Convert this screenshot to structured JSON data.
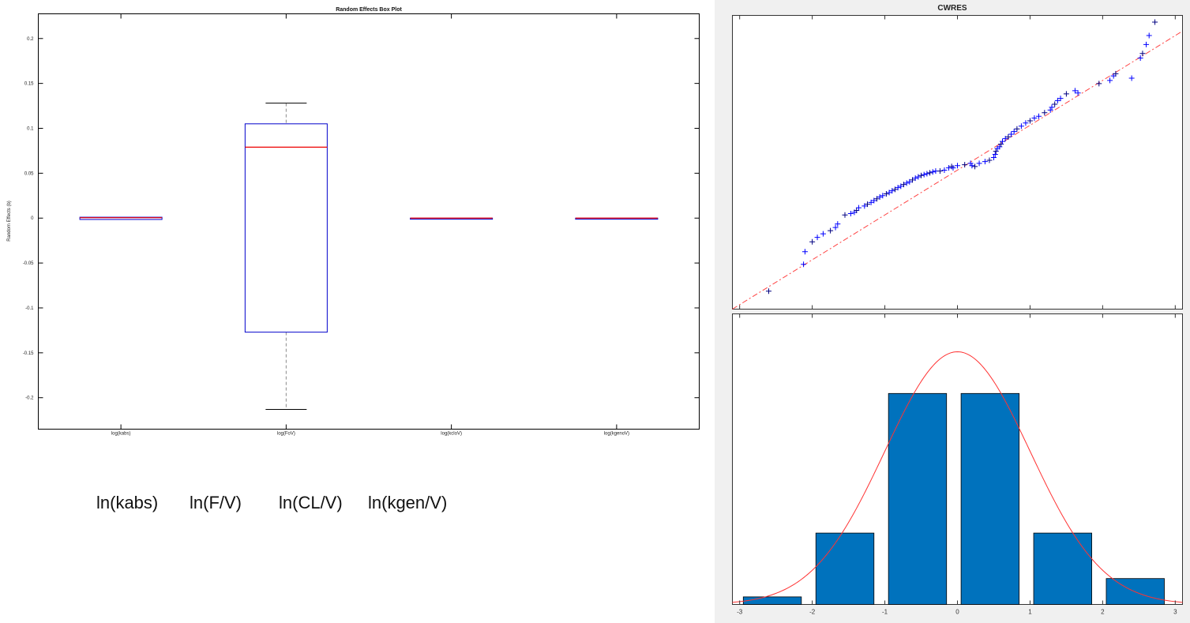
{
  "chart_data": [
    {
      "type": "box",
      "title": "Random Effects Box Plot",
      "xlabel": "",
      "ylabel": "Random Effects (b)",
      "ylim": [
        -0.235,
        0.2275
      ],
      "yticks": [
        0.2,
        0.15,
        0.1,
        0.05,
        0,
        -0.05,
        -0.1,
        -0.15,
        -0.2
      ],
      "categories": [
        "log(kabs)",
        "log(FoV)",
        "log(kcloV)",
        "log(kgenoV)"
      ],
      "boxes": [
        {
          "q1": -0.0015,
          "median": 0.0005,
          "q3": 0.001,
          "whisker_low": -0.0015,
          "whisker_high": 0.001
        },
        {
          "q1": -0.127,
          "median": 0.079,
          "q3": 0.105,
          "whisker_low": -0.213,
          "whisker_high": 0.128
        },
        {
          "q1": 0,
          "median": 0,
          "q3": 0,
          "whisker_low": 0,
          "whisker_high": 0
        },
        {
          "q1": 0,
          "median": 0,
          "q3": 0,
          "whisker_low": 0,
          "whisker_high": 0
        }
      ],
      "colors": {
        "box": "#0000cc",
        "median": "#ee0000",
        "whisker": "#000000",
        "whisker_dash": "#8c8c8c"
      }
    },
    {
      "type": "scatter",
      "title": "CWRES",
      "xlim": [
        -3.1,
        3.1
      ],
      "ylim": [
        -3.1,
        3.45
      ],
      "reference_line": {
        "slope": 1,
        "intercept": 0,
        "style": "dash-dot",
        "color": "#ff4444"
      },
      "marker": "+",
      "marker_colors": [
        "#0000ff",
        "#000080"
      ],
      "points": [
        [
          -2.6,
          -2.7
        ],
        [
          -2.12,
          -2.1
        ],
        [
          -2.1,
          -1.82
        ],
        [
          -2.0,
          -1.6
        ],
        [
          -1.93,
          -1.5
        ],
        [
          -1.85,
          -1.42
        ],
        [
          -1.75,
          -1.35
        ],
        [
          -1.68,
          -1.28
        ],
        [
          -1.65,
          -1.2
        ],
        [
          -1.55,
          -1.0
        ],
        [
          -1.47,
          -0.97
        ],
        [
          -1.42,
          -0.94
        ],
        [
          -1.39,
          -0.9
        ],
        [
          -1.36,
          -0.84
        ],
        [
          -1.28,
          -0.8
        ],
        [
          -1.24,
          -0.76
        ],
        [
          -1.19,
          -0.72
        ],
        [
          -1.15,
          -0.68
        ],
        [
          -1.11,
          -0.64
        ],
        [
          -1.07,
          -0.6
        ],
        [
          -1.03,
          -0.57
        ],
        [
          -0.98,
          -0.53
        ],
        [
          -0.94,
          -0.5
        ],
        [
          -0.9,
          -0.46
        ],
        [
          -0.86,
          -0.43
        ],
        [
          -0.82,
          -0.39
        ],
        [
          -0.78,
          -0.36
        ],
        [
          -0.74,
          -0.32
        ],
        [
          -0.7,
          -0.29
        ],
        [
          -0.66,
          -0.26
        ],
        [
          -0.62,
          -0.22
        ],
        [
          -0.58,
          -0.18
        ],
        [
          -0.54,
          -0.15
        ],
        [
          -0.5,
          -0.12
        ],
        [
          -0.46,
          -0.1
        ],
        [
          -0.42,
          -0.08
        ],
        [
          -0.38,
          -0.06
        ],
        [
          -0.34,
          -0.04
        ],
        [
          -0.3,
          -0.02
        ],
        [
          -0.24,
          -0.02
        ],
        [
          -0.18,
          0.0
        ],
        [
          -0.12,
          0.05
        ],
        [
          -0.08,
          0.08
        ],
        [
          -0.06,
          0.05
        ],
        [
          0.0,
          0.1
        ],
        [
          0.1,
          0.12
        ],
        [
          0.18,
          0.15
        ],
        [
          0.2,
          0.1
        ],
        [
          0.24,
          0.08
        ],
        [
          0.3,
          0.15
        ],
        [
          0.38,
          0.19
        ],
        [
          0.44,
          0.22
        ],
        [
          0.5,
          0.28
        ],
        [
          0.52,
          0.35
        ],
        [
          0.53,
          0.42
        ],
        [
          0.55,
          0.48
        ],
        [
          0.58,
          0.52
        ],
        [
          0.6,
          0.58
        ],
        [
          0.62,
          0.64
        ],
        [
          0.66,
          0.7
        ],
        [
          0.7,
          0.74
        ],
        [
          0.74,
          0.8
        ],
        [
          0.78,
          0.86
        ],
        [
          0.82,
          0.92
        ],
        [
          0.88,
          0.98
        ],
        [
          0.94,
          1.05
        ],
        [
          1.0,
          1.1
        ],
        [
          1.06,
          1.16
        ],
        [
          1.12,
          1.2
        ],
        [
          1.2,
          1.28
        ],
        [
          1.28,
          1.34
        ],
        [
          1.3,
          1.4
        ],
        [
          1.34,
          1.47
        ],
        [
          1.38,
          1.55
        ],
        [
          1.42,
          1.6
        ],
        [
          1.5,
          1.7
        ],
        [
          1.62,
          1.77
        ],
        [
          1.66,
          1.72
        ],
        [
          1.95,
          1.93
        ],
        [
          2.1,
          2.0
        ],
        [
          2.15,
          2.1
        ],
        [
          2.18,
          2.15
        ],
        [
          2.4,
          2.05
        ],
        [
          2.52,
          2.5
        ],
        [
          2.55,
          2.6
        ],
        [
          2.6,
          2.8
        ],
        [
          2.64,
          3.0
        ],
        [
          2.72,
          3.3
        ]
      ]
    },
    {
      "type": "histogram",
      "xlim": [
        -3.1,
        3.1
      ],
      "ylim": [
        0,
        0.46
      ],
      "xticks": [
        -3,
        -2,
        -1,
        0,
        1,
        2,
        3
      ],
      "bins": [
        {
          "start": -2.95,
          "end": -2.15,
          "value": 0.012
        },
        {
          "start": -1.95,
          "end": -1.15,
          "value": 0.113
        },
        {
          "start": -0.95,
          "end": -0.15,
          "value": 0.334
        },
        {
          "start": 0.05,
          "end": 0.85,
          "value": 0.334
        },
        {
          "start": 1.05,
          "end": 1.85,
          "value": 0.113
        },
        {
          "start": 2.05,
          "end": 2.85,
          "value": 0.041
        }
      ],
      "curve": {
        "type": "normal",
        "mean": 0,
        "sd": 1,
        "peak": 0.4,
        "color": "#ff3333"
      },
      "bar_color": "#0072bd"
    }
  ],
  "captions": {
    "kabs": "ln(kabs)",
    "fv": "ln(F/V)",
    "clv": "ln(CL/V)",
    "kgenv": "ln(kgen/V)"
  }
}
